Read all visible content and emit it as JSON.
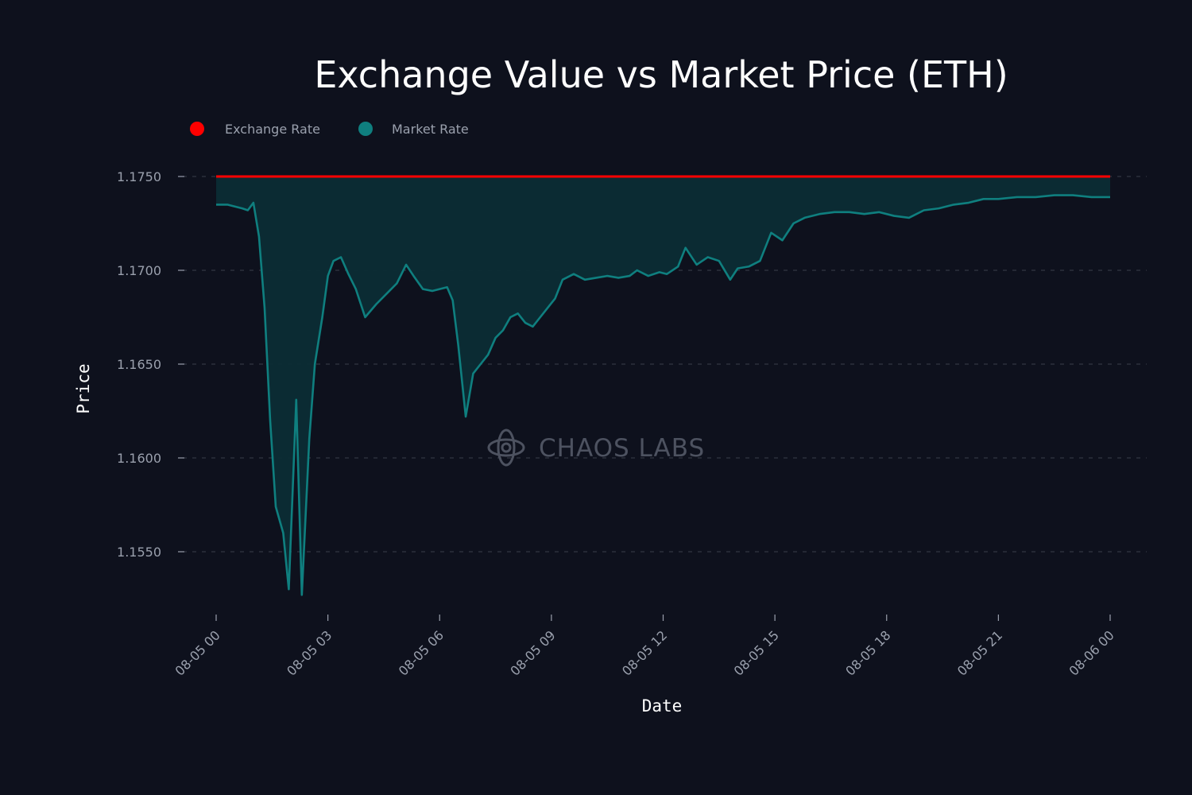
{
  "chart_data": {
    "type": "area",
    "title": "Exchange Value vs Market Price (ETH)",
    "xlabel": "Date",
    "ylabel": "Price",
    "ylim": [
      1.1525,
      1.176
    ],
    "xlim_hours": [
      0,
      24
    ],
    "y_ticks": [
      {
        "value": 1.155,
        "label": "1.1550"
      },
      {
        "value": 1.16,
        "label": "1.1600"
      },
      {
        "value": 1.165,
        "label": "1.1650"
      },
      {
        "value": 1.17,
        "label": "1.1700"
      },
      {
        "value": 1.175,
        "label": "1.1750"
      }
    ],
    "x_ticks": [
      {
        "hour": 0,
        "label": "08-05 00"
      },
      {
        "hour": 3,
        "label": "08-05 03"
      },
      {
        "hour": 6,
        "label": "08-05 06"
      },
      {
        "hour": 9,
        "label": "08-05 09"
      },
      {
        "hour": 12,
        "label": "08-05 12"
      },
      {
        "hour": 15,
        "label": "08-05 15"
      },
      {
        "hour": 18,
        "label": "08-05 18"
      },
      {
        "hour": 21,
        "label": "08-05 21"
      },
      {
        "hour": 24,
        "label": "08-06 00"
      }
    ],
    "grid": true,
    "legend_position": "top-left",
    "series": [
      {
        "name": "Exchange Rate",
        "color": "#ff0000",
        "x": [
          0,
          24
        ],
        "values": [
          1.175,
          1.175
        ]
      },
      {
        "name": "Market Rate",
        "color": "#0f7f7f",
        "fill": "#0c2d35",
        "x": [
          0,
          0.3,
          0.5,
          0.7,
          0.85,
          1.0,
          1.15,
          1.3,
          1.45,
          1.6,
          1.8,
          1.95,
          2.15,
          2.3,
          2.5,
          2.65,
          2.85,
          3.0,
          3.15,
          3.35,
          3.55,
          3.75,
          4.0,
          4.3,
          4.6,
          4.85,
          5.1,
          5.3,
          5.55,
          5.8,
          6.0,
          6.2,
          6.35,
          6.5,
          6.7,
          6.9,
          7.1,
          7.3,
          7.5,
          7.7,
          7.9,
          8.1,
          8.3,
          8.5,
          8.7,
          8.9,
          9.1,
          9.3,
          9.6,
          9.9,
          10.2,
          10.5,
          10.8,
          11.1,
          11.3,
          11.6,
          11.9,
          12.1,
          12.4,
          12.6,
          12.9,
          13.2,
          13.5,
          13.8,
          14.0,
          14.3,
          14.6,
          14.9,
          15.2,
          15.5,
          15.8,
          16.2,
          16.6,
          17.0,
          17.4,
          17.8,
          18.2,
          18.6,
          19.0,
          19.4,
          19.8,
          20.2,
          20.6,
          21.0,
          21.5,
          22.0,
          22.5,
          23.0,
          23.5,
          24.0
        ],
        "values": [
          1.1735,
          1.1735,
          1.1734,
          1.1733,
          1.1732,
          1.1736,
          1.1718,
          1.168,
          1.162,
          1.1574,
          1.156,
          1.153,
          1.1631,
          1.1527,
          1.161,
          1.165,
          1.1675,
          1.1697,
          1.1705,
          1.1707,
          1.1698,
          1.169,
          1.1675,
          1.1682,
          1.1688,
          1.1693,
          1.1703,
          1.1697,
          1.169,
          1.1689,
          1.169,
          1.1691,
          1.1684,
          1.166,
          1.1622,
          1.1645,
          1.165,
          1.1655,
          1.1664,
          1.1668,
          1.1675,
          1.1677,
          1.1672,
          1.167,
          1.1675,
          1.168,
          1.1685,
          1.1695,
          1.1698,
          1.1695,
          1.1696,
          1.1697,
          1.1696,
          1.1697,
          1.17,
          1.1697,
          1.1699,
          1.1698,
          1.1702,
          1.1712,
          1.1703,
          1.1707,
          1.1705,
          1.1695,
          1.1701,
          1.1702,
          1.1705,
          1.172,
          1.1716,
          1.1725,
          1.1728,
          1.173,
          1.1731,
          1.1731,
          1.173,
          1.1731,
          1.1729,
          1.1728,
          1.1732,
          1.1733,
          1.1735,
          1.1736,
          1.1738,
          1.1738,
          1.1739,
          1.1739,
          1.174,
          1.174,
          1.1739,
          1.1739
        ]
      }
    ],
    "watermark": "CHAOS LABS"
  }
}
